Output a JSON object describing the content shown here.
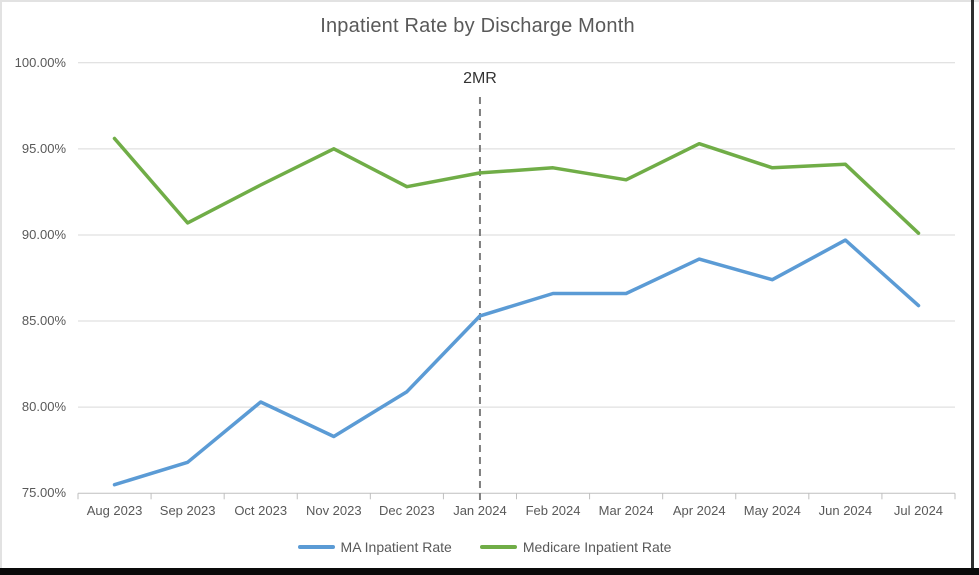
{
  "chart_data": {
    "type": "line",
    "title": "Inpatient Rate by Discharge Month",
    "xlabel": "",
    "ylabel": "",
    "categories": [
      "Aug 2023",
      "Sep 2023",
      "Oct 2023",
      "Nov 2023",
      "Dec 2023",
      "Jan 2024",
      "Feb 2024",
      "Mar 2024",
      "Apr 2024",
      "May 2024",
      "Jun 2024",
      "Jul 2024"
    ],
    "series": [
      {
        "name": "MA Inpatient Rate",
        "color": "#5B9BD5",
        "values": [
          75.5,
          76.8,
          80.3,
          78.3,
          80.9,
          85.3,
          86.6,
          86.6,
          88.6,
          87.4,
          89.7,
          85.9
        ]
      },
      {
        "name": "Medicare Inpatient Rate",
        "color": "#70AD47",
        "values": [
          95.6,
          90.7,
          92.9,
          95.0,
          92.8,
          93.6,
          93.9,
          93.2,
          95.3,
          93.9,
          94.1,
          90.1
        ]
      }
    ],
    "ylim": [
      75,
      100
    ],
    "yticks": [
      {
        "value": 100,
        "label": "100.00%"
      },
      {
        "value": 95,
        "label": "95.00%"
      },
      {
        "value": 90,
        "label": "90.00%"
      },
      {
        "value": 85,
        "label": "85.00%"
      },
      {
        "value": 80,
        "label": "80.00%"
      },
      {
        "value": 75,
        "label": "75.00%"
      }
    ],
    "annotation": {
      "label": "2MR",
      "category": "Jan 2024",
      "category_index": 5
    },
    "grid": "horizontal",
    "legend_position": "bottom",
    "colors": {
      "gridline": "#D9D9D9",
      "axis": "#BFBFBF",
      "annotation_line": "#7F7F7F",
      "text": "#595959",
      "annotation_text": "#333333"
    }
  }
}
